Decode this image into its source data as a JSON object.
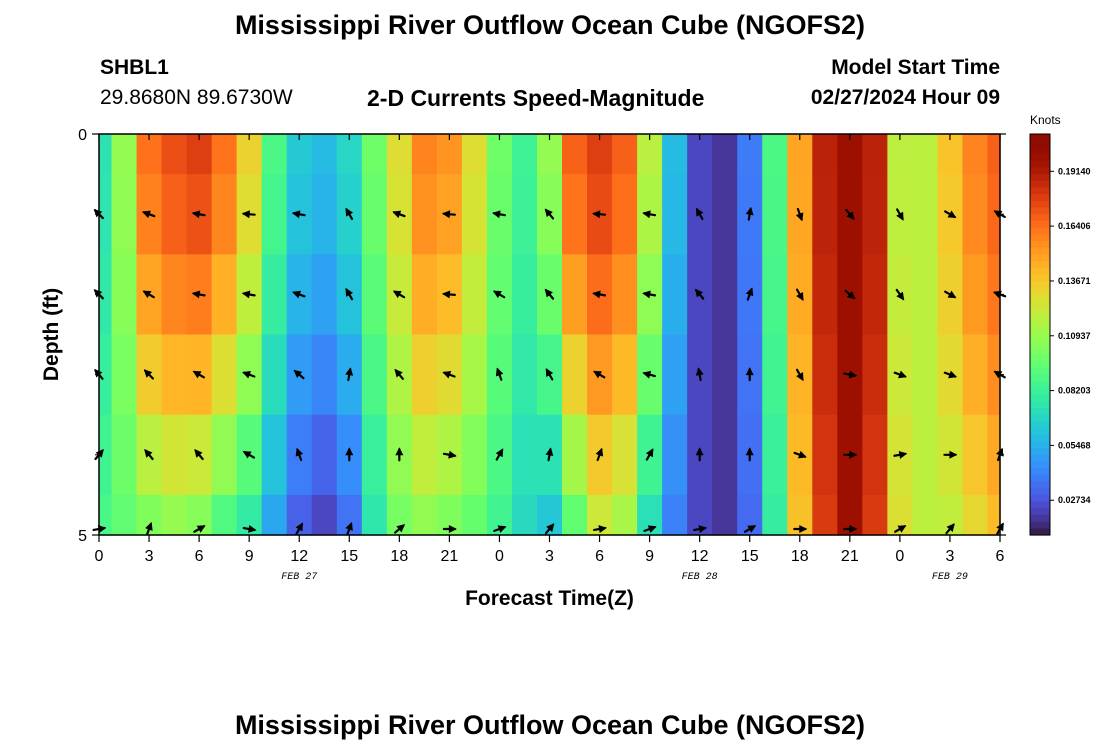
{
  "page": {
    "title": "Mississippi River Outflow Ocean Cube (NGOFS2)",
    "title_repeat": "Mississippi River Outflow Ocean Cube (NGOFS2)"
  },
  "station": {
    "id": "SHBL1",
    "coords": "29.8680N  89.6730W"
  },
  "model": {
    "label": "Model Start Time",
    "value": "02/27/2024 Hour 09"
  },
  "chart_data": {
    "type": "heatmap",
    "title": "2-D Currents Speed-Magnitude",
    "xlabel": "Forecast Time(Z)",
    "ylabel": "Depth (ft)",
    "x_ticks": [
      "0",
      "3",
      "6",
      "9",
      "12",
      "15",
      "18",
      "21",
      "0",
      "3",
      "6",
      "9",
      "12",
      "15",
      "18",
      "21",
      "0",
      "3",
      "6"
    ],
    "x_tick_hours": [
      0,
      3,
      6,
      9,
      12,
      15,
      18,
      21,
      24,
      27,
      30,
      33,
      36,
      39,
      42,
      45,
      48,
      51,
      54
    ],
    "date_labels": [
      {
        "label": "FEB 27",
        "hour": 12
      },
      {
        "label": "FEB 28",
        "hour": 36
      },
      {
        "label": "FEB 29",
        "hour": 51
      }
    ],
    "xlim": [
      0,
      54
    ],
    "ylim": [
      5,
      0
    ],
    "y_ticks": [
      "0",
      "5"
    ],
    "y_tick_values": [
      0,
      5
    ],
    "y_minor": [
      1,
      2,
      3,
      4
    ],
    "colorbar": {
      "unit": "Knots",
      "ticks": [
        "0.19140",
        "0.16406",
        "0.13671",
        "0.10937",
        "0.08203",
        "0.05468",
        "0.02734"
      ],
      "tick_values": [
        0.1914,
        0.16406,
        0.13671,
        0.10937,
        0.08203,
        0.05468,
        0.02734
      ],
      "min": 0.01,
      "max": 0.21,
      "colormap": "turbo"
    },
    "speed_columns": {
      "hours": [
        0,
        1.5,
        3,
        4.5,
        6,
        7.5,
        9,
        10.5,
        12,
        13.5,
        15,
        16.5,
        18,
        19.5,
        21,
        22.5,
        24,
        25.5,
        27,
        28.5,
        30,
        31.5,
        33,
        34.5,
        36,
        37.5,
        39,
        40.5,
        42,
        43.5,
        45,
        46.5,
        48,
        49.5,
        51,
        52.5,
        54
      ],
      "surface": [
        0.075,
        0.11,
        0.165,
        0.175,
        0.18,
        0.165,
        0.135,
        0.09,
        0.065,
        0.06,
        0.07,
        0.1,
        0.13,
        0.16,
        0.155,
        0.13,
        0.1,
        0.085,
        0.11,
        0.17,
        0.18,
        0.17,
        0.12,
        0.06,
        0.025,
        0.02,
        0.04,
        0.09,
        0.15,
        0.19,
        0.2,
        0.19,
        0.12,
        0.12,
        0.14,
        0.16,
        0.17
      ],
      "bottom": [
        0.09,
        0.095,
        0.1,
        0.105,
        0.1,
        0.085,
        0.075,
        0.05,
        0.03,
        0.022,
        0.035,
        0.075,
        0.1,
        0.105,
        0.1,
        0.095,
        0.085,
        0.07,
        0.06,
        0.09,
        0.12,
        0.11,
        0.07,
        0.04,
        0.025,
        0.02,
        0.035,
        0.08,
        0.14,
        0.18,
        0.2,
        0.18,
        0.13,
        0.12,
        0.12,
        0.13,
        0.14
      ]
    },
    "vectors": {
      "hours": [
        0,
        3,
        6,
        9,
        12,
        15,
        18,
        21,
        24,
        27,
        30,
        33,
        36,
        39,
        42,
        45,
        48,
        51,
        54
      ],
      "depths": [
        1,
        2,
        3,
        4,
        5
      ],
      "directions_deg": [
        [
          315,
          290,
          280,
          275,
          280,
          330,
          290,
          275,
          280,
          320,
          275,
          280,
          330,
          10,
          160,
          140,
          150,
          120,
          300
        ],
        [
          315,
          300,
          280,
          280,
          290,
          330,
          300,
          275,
          300,
          320,
          280,
          280,
          320,
          20,
          150,
          130,
          145,
          120,
          290
        ],
        [
          320,
          315,
          300,
          290,
          310,
          10,
          320,
          290,
          340,
          330,
          300,
          285,
          350,
          0,
          150,
          100,
          110,
          110,
          300
        ],
        [
          40,
          320,
          320,
          300,
          340,
          0,
          0,
          100,
          30,
          10,
          20,
          30,
          0,
          0,
          110,
          90,
          80,
          90,
          20
        ],
        [
          80,
          20,
          60,
          100,
          30,
          20,
          50,
          90,
          70,
          40,
          80,
          70,
          80,
          60,
          90,
          90,
          60,
          40,
          30
        ]
      ]
    }
  }
}
